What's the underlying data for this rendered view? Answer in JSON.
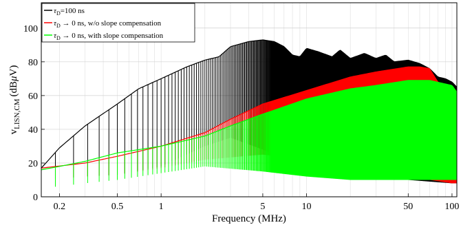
{
  "chart_data": {
    "type": "line",
    "title": "",
    "xlabel": "Frequency (MHz)",
    "ylabel": {
      "main": "v",
      "subscript": "LISN,CM",
      "unit": "(dB",
      "unit_symbol": "μ",
      "unit_end": "V)"
    },
    "x_scale": "log",
    "xlim": [
      0.15,
      108
    ],
    "ylim": [
      0,
      115
    ],
    "x_ticks": [
      0.2,
      0.5,
      1,
      5,
      10,
      50,
      100
    ],
    "x_tick_labels": [
      "0.2",
      "0.5",
      "1",
      "5",
      "10",
      "50",
      "100"
    ],
    "y_ticks": [
      0,
      20,
      40,
      60,
      80,
      100
    ],
    "y_tick_labels": [
      "0",
      "20",
      "40",
      "60",
      "80",
      "100"
    ],
    "grid": true,
    "legend_position": "top-left",
    "series": [
      {
        "legend": {
          "pre": "τ",
          "sub": "D",
          "post": "=100 ns"
        },
        "color": "#000000",
        "peak_envelope": {
          "x": [
            0.15,
            0.2,
            0.3,
            0.5,
            0.7,
            1.0,
            1.5,
            2.0,
            2.5,
            3.0,
            4.0,
            5.0,
            6.0,
            7.0,
            8.0,
            9.0,
            10.0,
            12.0,
            15.0,
            17.0,
            20.0,
            25.0,
            30.0,
            35.0,
            40.0,
            50.0,
            60.0,
            70.0,
            80.0,
            90.0,
            100.0,
            108.0
          ],
          "y": [
            17,
            29,
            42,
            55,
            64,
            70,
            77,
            81,
            83,
            89,
            92,
            93,
            92,
            89,
            84,
            83,
            88,
            86,
            83,
            87,
            82,
            85,
            82,
            84,
            80,
            81,
            79,
            76,
            71,
            70,
            68,
            65
          ]
        },
        "floor_envelope": {
          "x": [
            0.15,
            0.3,
            0.5,
            1.0,
            2.0,
            3.0,
            5.0,
            10.0,
            20.0,
            50.0,
            100.0
          ],
          "y": [
            10,
            12,
            13,
            18,
            30,
            35,
            28,
            18,
            15,
            10,
            8
          ]
        }
      },
      {
        "legend": {
          "pre": "τ",
          "sub": "D",
          "post": " → 0 ns, w/o slope compensation"
        },
        "color": "#ff0000",
        "peak_envelope": {
          "x": [
            0.15,
            0.3,
            0.5,
            1.0,
            2.0,
            3.0,
            5.0,
            10.0,
            20.0,
            30.0,
            50.0,
            60.0,
            70.0,
            80.0,
            100.0,
            108.0
          ],
          "y": [
            17,
            20,
            24,
            30,
            38,
            46,
            55,
            63,
            71,
            74,
            77,
            77,
            76,
            68,
            60,
            58
          ]
        },
        "floor_envelope": {
          "x": [
            0.15,
            0.3,
            0.5,
            1.0,
            2.0,
            5.0,
            10.0,
            20.0,
            50.0,
            100.0
          ],
          "y": [
            10,
            12,
            13,
            17,
            22,
            25,
            22,
            18,
            12,
            8
          ]
        }
      },
      {
        "legend": {
          "pre": "τ",
          "sub": "D",
          "post": " → 0 ns, with slope compensation"
        },
        "color": "#00ff00",
        "peak_envelope": {
          "x": [
            0.15,
            0.2,
            0.3,
            0.5,
            1.0,
            2.0,
            3.0,
            5.0,
            10.0,
            20.0,
            30.0,
            50.0,
            70.0,
            100.0,
            108.0
          ],
          "y": [
            16,
            18,
            21,
            26,
            30,
            36,
            42,
            49,
            58,
            64,
            66,
            69,
            69,
            66,
            62
          ]
        },
        "floor_envelope": {
          "x": [
            0.15,
            0.3,
            0.5,
            1.0,
            2.0,
            5.0,
            10.0,
            20.0,
            50.0,
            100.0
          ],
          "y": [
            5,
            8,
            10,
            14,
            18,
            15,
            12,
            10,
            10,
            10
          ]
        }
      }
    ]
  }
}
